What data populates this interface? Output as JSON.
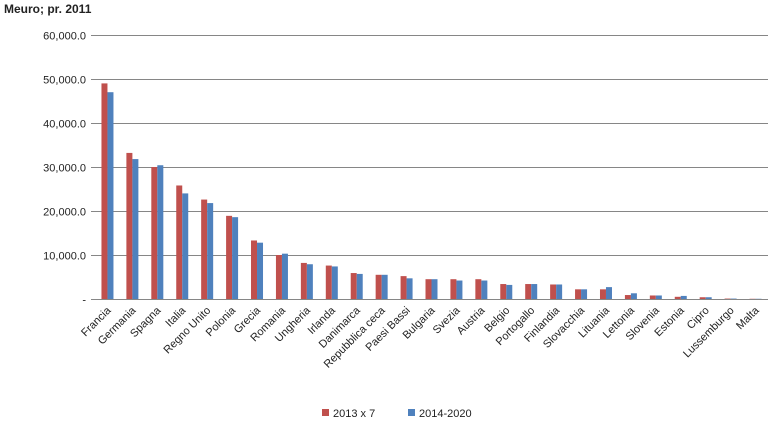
{
  "chart_data": {
    "type": "bar",
    "unit_label": "Meuro; pr. 2011",
    "title": "",
    "xlabel": "",
    "ylabel": "",
    "ylim": [
      0,
      60000
    ],
    "yticks": [
      0,
      10000,
      20000,
      30000,
      40000,
      50000,
      60000
    ],
    "ytick_labels": [
      "-",
      "10,000.0",
      "20,000.0",
      "30,000.0",
      "40,000.0",
      "50,000.0",
      "60,000.0"
    ],
    "grid": true,
    "legend_position": "bottom",
    "categories": [
      "Francia",
      "Germania",
      "Spagna",
      "Italia",
      "Regno Unito",
      "Polonia",
      "Grecia",
      "Romania",
      "Ungheria",
      "Irlanda",
      "Danimarca",
      "Repubblica ceca",
      "Paesi Bassi",
      "Bulgaria",
      "Svezia",
      "Austria",
      "Belgio",
      "Portogallo",
      "Finlandia",
      "Slovacchia",
      "Lituania",
      "Lettonia",
      "Slovenia",
      "Estonia",
      "Cipro",
      "Lussemburgo",
      "Malta"
    ],
    "series": [
      {
        "name": "2013 x 7",
        "color": "#c0504d",
        "values": [
          49000,
          33200,
          30000,
          25800,
          22600,
          18900,
          13300,
          10000,
          8200,
          7600,
          5900,
          5500,
          5200,
          4500,
          4500,
          4500,
          3400,
          3400,
          3300,
          2200,
          2200,
          900,
          800,
          500,
          400,
          100,
          50
        ]
      },
      {
        "name": "2014-2020",
        "color": "#4f81bd",
        "values": [
          47000,
          31800,
          30400,
          24000,
          21800,
          18600,
          12800,
          10300,
          7900,
          7400,
          5700,
          5500,
          4700,
          4500,
          4200,
          4200,
          3200,
          3400,
          3300,
          2200,
          2700,
          1300,
          800,
          700,
          400,
          100,
          50
        ]
      }
    ]
  }
}
